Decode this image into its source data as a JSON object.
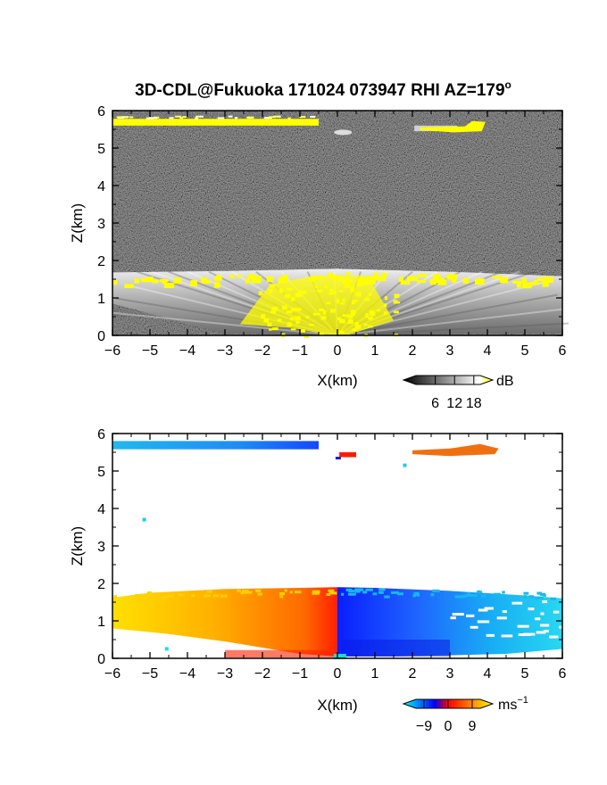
{
  "chart_data": [
    {
      "type": "heatmap",
      "title": "3D-CDL@Fukuoka 171024 073947 RHI AZ=179",
      "title_superscript": "o",
      "xlabel": "X(km)",
      "ylabel": "Z(km)",
      "xlim": [
        -6,
        6
      ],
      "ylim": [
        0,
        6
      ],
      "xticks": [
        -6,
        -5,
        -4,
        -3,
        -2,
        -1,
        0,
        1,
        2,
        3,
        4,
        5,
        6
      ],
      "yticks": [
        0,
        1,
        2,
        3,
        4,
        5,
        6
      ],
      "variable": "SNR",
      "colorbar": {
        "label": "dB",
        "ticks": [
          6,
          12,
          18
        ],
        "range": [
          0,
          20
        ],
        "colors": [
          "#000000",
          "#ffffff",
          "#ffff00"
        ]
      },
      "features": [
        {
          "name": "cloud-top layer",
          "x": [
            -6.0,
            -0.5
          ],
          "z": [
            5.6,
            5.8
          ],
          "value_db": 20
        },
        {
          "name": "small echo",
          "x": [
            -0.1,
            0.3
          ],
          "z": [
            5.35,
            5.5
          ],
          "value_db": 12
        },
        {
          "name": "cloud-top echo",
          "x": [
            2.0,
            4.0
          ],
          "z": [
            5.4,
            5.7
          ],
          "value_db": 20
        },
        {
          "name": "boundary layer top",
          "x": [
            -6.0,
            6.0
          ],
          "z": [
            1.4,
            1.8
          ],
          "value_db": 20
        },
        {
          "name": "boundary layer",
          "x": [
            -6.0,
            6.0
          ],
          "z": [
            0.0,
            1.7
          ],
          "value_db": 12
        }
      ]
    },
    {
      "type": "heatmap",
      "xlabel": "X(km)",
      "ylabel": "Z(km)",
      "xlim": [
        -6,
        6
      ],
      "ylim": [
        0,
        6
      ],
      "xticks": [
        -6,
        -5,
        -4,
        -3,
        -2,
        -1,
        0,
        1,
        2,
        3,
        4,
        5,
        6
      ],
      "yticks": [
        0,
        1,
        2,
        3,
        4,
        5,
        6
      ],
      "variable": "Doppler velocity",
      "colorbar": {
        "label": "ms",
        "label_superscript": "−1",
        "ticks": [
          "−9",
          "0",
          "9"
        ],
        "range": [
          -12,
          12
        ],
        "colors": [
          "#00ffff",
          "#0000ff",
          "#ff0000",
          "#ffff00"
        ]
      },
      "features": [
        {
          "name": "upper layer west",
          "x": [
            -6.0,
            -0.5
          ],
          "z": [
            5.6,
            5.8
          ],
          "velocity_ms": [
            -6,
            -9
          ]
        },
        {
          "name": "small echo",
          "x": [
            0.0,
            0.5
          ],
          "z": [
            5.35,
            5.5
          ],
          "velocity_ms": 1
        },
        {
          "name": "upper layer east",
          "x": [
            2.0,
            4.3
          ],
          "z": [
            5.4,
            5.7
          ],
          "velocity_ms": 6
        },
        {
          "name": "boundary layer west",
          "x": [
            -6.0,
            0.0
          ],
          "z": [
            0.0,
            1.9
          ],
          "velocity_ms": [
            9,
            1
          ]
        },
        {
          "name": "boundary layer east",
          "x": [
            0.0,
            6.0
          ],
          "z": [
            0.0,
            1.9
          ],
          "velocity_ms": [
            -1,
            -8
          ]
        }
      ]
    }
  ]
}
